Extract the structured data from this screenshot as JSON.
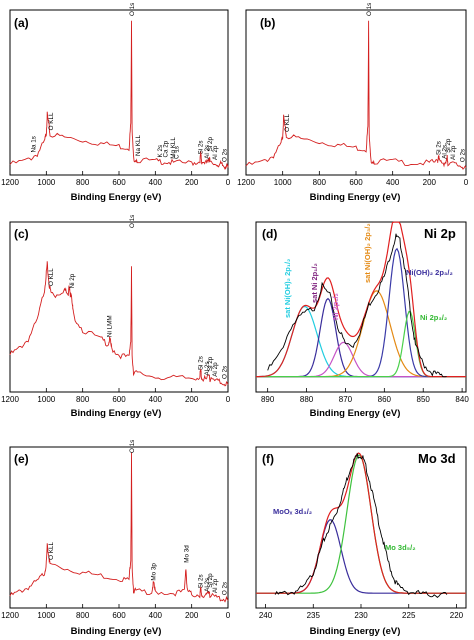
{
  "chart_data": [
    {
      "type": "line",
      "panel": "(a)",
      "title": "",
      "xlabel": "Binding Energy (eV)",
      "xlim": [
        1200,
        0
      ],
      "xticks": [
        "1200",
        "1000",
        "800",
        "600",
        "400",
        "200",
        "0"
      ],
      "color": "#d42020",
      "series": [
        {
          "x": [
            1200,
            1100,
            1050,
            1010,
            1000,
            995,
            985,
            980,
            900,
            800,
            700,
            600,
            545,
            535,
            531,
            528,
            520,
            500,
            400,
            350,
            300,
            200,
            155,
            150,
            145,
            120,
            105,
            102,
            99,
            60,
            40,
            25,
            10,
            0
          ],
          "y": [
            0.03,
            0.06,
            0.1,
            0.18,
            0.24,
            0.36,
            0.28,
            0.23,
            0.21,
            0.19,
            0.17,
            0.15,
            0.14,
            0.3,
            1.0,
            0.25,
            0.07,
            0.06,
            0.05,
            0.05,
            0.04,
            0.04,
            0.05,
            0.1,
            0.05,
            0.04,
            0.05,
            0.09,
            0.04,
            0.03,
            0.03,
            0.02,
            0.02,
            0.01
          ]
        }
      ],
      "annotations": [
        {
          "text": "O 1s",
          "x": 531
        },
        {
          "text": "O KLL",
          "x": 978
        },
        {
          "text": "Na 1s",
          "x": 1072
        },
        {
          "text": "Na KLL",
          "x": 497
        },
        {
          "text": "K 2s",
          "x": 378
        },
        {
          "text": "Ca 2p",
          "x": 347
        },
        {
          "text": "Mg KLL",
          "x": 306
        },
        {
          "text": "C 1s",
          "x": 285
        },
        {
          "text": "Si 2s",
          "x": 153
        },
        {
          "text": "Al 2s",
          "x": 119
        },
        {
          "text": "Si 2p",
          "x": 102
        },
        {
          "text": "Al 2p",
          "x": 74
        },
        {
          "text": "O 2s",
          "x": 23
        }
      ]
    },
    {
      "type": "line",
      "panel": "(b)",
      "title": "",
      "xlabel": "Binding Energy (eV)",
      "xlim": [
        1200,
        0
      ],
      "xticks": [
        "1200",
        "1000",
        "800",
        "600",
        "400",
        "200",
        "0"
      ],
      "color": "#d42020",
      "series": [
        {
          "x": [
            1200,
            1100,
            1050,
            1010,
            1000,
            995,
            985,
            980,
            900,
            800,
            700,
            600,
            545,
            535,
            531,
            528,
            520,
            500,
            400,
            300,
            200,
            155,
            150,
            145,
            120,
            105,
            102,
            99,
            60,
            25,
            0
          ],
          "y": [
            0.02,
            0.05,
            0.09,
            0.16,
            0.22,
            0.34,
            0.26,
            0.22,
            0.2,
            0.18,
            0.16,
            0.14,
            0.13,
            0.28,
            1.0,
            0.22,
            0.06,
            0.05,
            0.05,
            0.04,
            0.04,
            0.05,
            0.09,
            0.05,
            0.04,
            0.05,
            0.08,
            0.04,
            0.03,
            0.02,
            0.01
          ]
        }
      ],
      "annotations": [
        {
          "text": "O 1s",
          "x": 531
        },
        {
          "text": "O KLL",
          "x": 978
        },
        {
          "text": "Si 2s",
          "x": 153
        },
        {
          "text": "Al 2s",
          "x": 119
        },
        {
          "text": "Si 2p",
          "x": 102
        },
        {
          "text": "Al 2p",
          "x": 74
        },
        {
          "text": "O 2s",
          "x": 23
        }
      ]
    },
    {
      "type": "line",
      "panel": "(c)",
      "title": "",
      "xlabel": "Binding Energy (eV)",
      "xlim": [
        1200,
        0
      ],
      "xticks": [
        "1200",
        "1000",
        "800",
        "600",
        "400",
        "200",
        "0"
      ],
      "color": "#d42020",
      "series": [
        {
          "x": [
            1200,
            1150,
            1100,
            1050,
            1010,
            1000,
            995,
            985,
            975,
            950,
            900,
            880,
            875,
            868,
            862,
            855,
            850,
            800,
            700,
            660,
            650,
            640,
            600,
            545,
            535,
            531,
            528,
            520,
            500,
            400,
            300,
            200,
            155,
            150,
            145,
            120,
            102,
            99,
            60,
            25,
            0
          ],
          "y": [
            0.2,
            0.24,
            0.3,
            0.42,
            0.62,
            0.72,
            0.78,
            0.65,
            0.6,
            0.58,
            0.62,
            0.58,
            0.66,
            0.57,
            0.6,
            0.5,
            0.45,
            0.36,
            0.3,
            0.27,
            0.3,
            0.24,
            0.2,
            0.18,
            0.3,
            0.75,
            0.2,
            0.09,
            0.08,
            0.06,
            0.05,
            0.05,
            0.06,
            0.1,
            0.05,
            0.04,
            0.07,
            0.04,
            0.03,
            0.02,
            0.01
          ]
        }
      ],
      "annotations": [
        {
          "text": "O 1s",
          "x": 531
        },
        {
          "text": "O KLL",
          "x": 978
        },
        {
          "text": "Ni 2p",
          "x": 862
        },
        {
          "text": "Ni LMM",
          "x": 654
        },
        {
          "text": "Si 2s",
          "x": 153
        },
        {
          "text": "Al 2s",
          "x": 119
        },
        {
          "text": "Si 2p",
          "x": 102
        },
        {
          "text": "Al 2p",
          "x": 74
        },
        {
          "text": "O 2s",
          "x": 23
        }
      ]
    },
    {
      "type": "line",
      "panel": "(d)",
      "title": "Ni 2p",
      "xlabel": "Binding Energy (eV)",
      "xlim": [
        893,
        839
      ],
      "xticks": [
        "890",
        "880",
        "870",
        "860",
        "850",
        "840"
      ],
      "color": "#000000",
      "series": [
        {
          "x": [
            890,
            887,
            884,
            881,
            878,
            876,
            874,
            872,
            870,
            868,
            866,
            864,
            862,
            860,
            858,
            857,
            856,
            855,
            854,
            853,
            852,
            850,
            848,
            846,
            844
          ],
          "y": [
            0.1,
            0.2,
            0.38,
            0.46,
            0.5,
            0.64,
            0.58,
            0.38,
            0.27,
            0.26,
            0.36,
            0.52,
            0.6,
            0.7,
            0.88,
            0.96,
            0.93,
            0.8,
            0.62,
            0.42,
            0.26,
            0.14,
            0.09,
            0.07,
            0.06
          ]
        }
      ],
      "components": [
        {
          "center": 880.5,
          "height": 0.45,
          "width": 3.2,
          "color": "#22cde0"
        },
        {
          "center": 874.5,
          "height": 0.5,
          "width": 2.0,
          "color": "#3a2e9c"
        },
        {
          "center": 870.5,
          "height": 0.22,
          "width": 2.4,
          "color": "#c653c6"
        },
        {
          "center": 862,
          "height": 0.55,
          "width": 3.5,
          "color": "#e48a14"
        },
        {
          "center": 856.8,
          "height": 0.82,
          "width": 2.0,
          "color": "#3b3ba8"
        },
        {
          "center": 853.5,
          "height": 0.42,
          "width": 1.5,
          "color": "#4ad04a"
        }
      ],
      "annotations": [
        {
          "text": "sat Ni(OH)₂ 2p₁/₂",
          "color": "#22cde0"
        },
        {
          "text": "sat Ni 2p₁/₂",
          "color": "#7a1a7a"
        },
        {
          "text": "Ni 2p₁/₂",
          "color": "#c653c6"
        },
        {
          "text": "sat Ni(OH)₂ 2p₃/₂",
          "color": "#e48a14"
        },
        {
          "text": "Ni(OH)₂ 2p₃/₂",
          "color": "#3a2e9c"
        },
        {
          "text": "Ni 2p₃/₂",
          "color": "#32b832"
        }
      ]
    },
    {
      "type": "line",
      "panel": "(e)",
      "title": "",
      "xlabel": "Binding Energy (eV)",
      "xlim": [
        1200,
        0
      ],
      "xticks": [
        "1200",
        "1000",
        "800",
        "600",
        "400",
        "200",
        "0"
      ],
      "color": "#d42020",
      "series": [
        {
          "x": [
            1200,
            1150,
            1100,
            1050,
            1010,
            1000,
            995,
            985,
            980,
            900,
            800,
            700,
            600,
            545,
            535,
            531,
            528,
            520,
            500,
            420,
            410,
            400,
            300,
            240,
            232,
            225,
            200,
            155,
            150,
            145,
            120,
            102,
            99,
            60,
            25,
            0
          ],
          "y": [
            0.04,
            0.07,
            0.1,
            0.14,
            0.2,
            0.26,
            0.38,
            0.3,
            0.26,
            0.23,
            0.2,
            0.18,
            0.16,
            0.15,
            0.3,
            1.0,
            0.25,
            0.08,
            0.07,
            0.07,
            0.13,
            0.07,
            0.06,
            0.07,
            0.24,
            0.08,
            0.05,
            0.05,
            0.09,
            0.05,
            0.04,
            0.07,
            0.04,
            0.03,
            0.02,
            0.01
          ]
        }
      ],
      "annotations": [
        {
          "text": "O 1s",
          "x": 531
        },
        {
          "text": "O KLL",
          "x": 978
        },
        {
          "text": "Mo 3p",
          "x": 412
        },
        {
          "text": "Mo 3d",
          "x": 232
        },
        {
          "text": "Si 2s",
          "x": 153
        },
        {
          "text": "Al 2s",
          "x": 119
        },
        {
          "text": "Si 2p",
          "x": 102
        },
        {
          "text": "Al 2p",
          "x": 74
        },
        {
          "text": "O 2s",
          "x": 23
        }
      ]
    },
    {
      "type": "line",
      "panel": "(f)",
      "title": "Mo 3d",
      "xlabel": "Binding Energy (eV)",
      "xlim": [
        241,
        219
      ],
      "xticks": [
        "240",
        "235",
        "230",
        "225",
        "220"
      ],
      "color": "#000000",
      "series": [
        {
          "x": [
            239,
            238,
            237,
            236,
            235,
            234.5,
            234,
            233.5,
            233,
            232.5,
            232,
            231.5,
            231,
            230.5,
            230.2,
            229.8,
            229.5,
            229,
            228.5,
            228,
            227.5,
            227,
            226.5,
            226,
            225,
            224,
            223,
            222,
            221
          ],
          "y": [
            0.05,
            0.06,
            0.07,
            0.1,
            0.2,
            0.3,
            0.4,
            0.48,
            0.55,
            0.62,
            0.72,
            0.83,
            0.93,
            0.99,
            1.0,
            0.98,
            0.92,
            0.8,
            0.65,
            0.5,
            0.36,
            0.24,
            0.15,
            0.1,
            0.07,
            0.06,
            0.05,
            0.05,
            0.05
          ]
        }
      ],
      "components": [
        {
          "center": 233.2,
          "height": 0.5,
          "width": 1.1,
          "color": "#3a2e9c"
        },
        {
          "center": 230.2,
          "height": 0.94,
          "width": 1.25,
          "color": "#3fc23f"
        }
      ],
      "annotations": [
        {
          "text": "MoOₓ 3d₃/₂",
          "color": "#3a2e9c"
        },
        {
          "text": "Mo 3d₅/₂",
          "color": "#32b832"
        }
      ]
    }
  ]
}
